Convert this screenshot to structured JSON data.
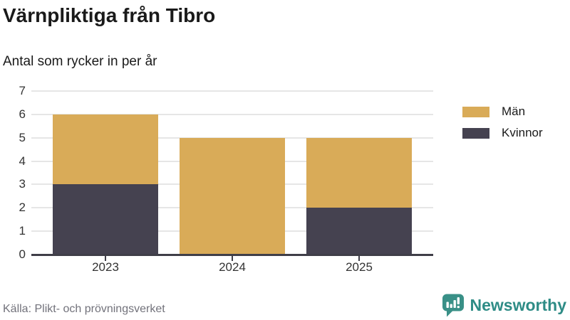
{
  "header": {
    "title": "Värnpliktiga från Tibro",
    "subtitle": "Antal som rycker in per år"
  },
  "chart_data": {
    "type": "bar",
    "stacked": true,
    "title": "Värnpliktiga från Tibro",
    "subtitle": "Antal som rycker in per år",
    "categories": [
      "2023",
      "2024",
      "2025"
    ],
    "series": [
      {
        "name": "Kvinnor",
        "color": "#454250",
        "values": [
          3,
          0,
          2
        ]
      },
      {
        "name": "Män",
        "color": "#d9ab58",
        "values": [
          3,
          5,
          3
        ]
      }
    ],
    "totals": [
      6,
      5,
      5
    ],
    "legend": [
      {
        "label": "Män",
        "color": "#d9ab58"
      },
      {
        "label": "Kvinnor",
        "color": "#454250"
      }
    ],
    "legend_position": "right",
    "ylim": [
      0,
      7
    ],
    "yticks": [
      0,
      1,
      2,
      3,
      4,
      5,
      6,
      7
    ],
    "grid": true,
    "xlabel": "",
    "ylabel": ""
  },
  "footer": {
    "source": "Källa: Plikt- och prövningsverket",
    "brand": "Newsworthy",
    "brand_color": "#2e8c86",
    "brand_icon_color": "#399087"
  },
  "icons": {
    "brand_logo": "bar-chart-speech-bubble-icon"
  }
}
